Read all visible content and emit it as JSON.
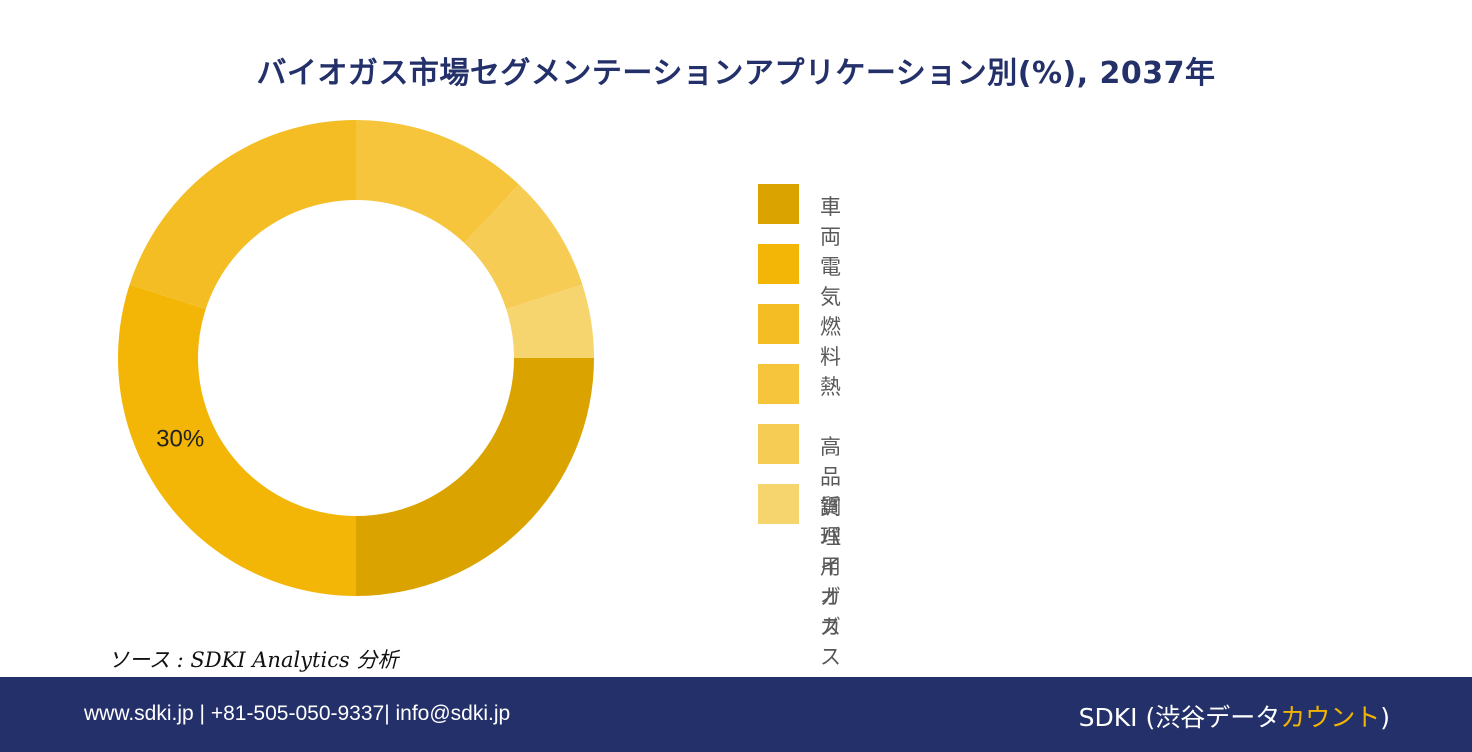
{
  "chart_data": {
    "type": "pie",
    "donut": true,
    "title": "バイオガス市場セグメンテーションアプリケーション別(%), 2037年",
    "categories": [
      "車両",
      "電気",
      "燃料",
      "熱",
      "高品質バイオガス",
      "調理用ガス"
    ],
    "values": [
      25,
      30,
      20,
      12,
      8,
      5
    ],
    "unit": "%",
    "colors": [
      "#dba300",
      "#f3b506",
      "#f3bd23",
      "#f6c53b",
      "#f6cc55",
      "#f7d56e"
    ],
    "data_labels": [
      {
        "category": "電気",
        "text": "30%"
      }
    ],
    "legend_position": "right"
  },
  "source": "ソース : SDKI Analytics 分析",
  "footer": {
    "contact": "www.sdki.jp | +81-505-050-9337| info@sdki.jp",
    "brand_main": "SDKI (渋谷データ",
    "brand_accent": "カウント",
    "brand_close": ")"
  }
}
